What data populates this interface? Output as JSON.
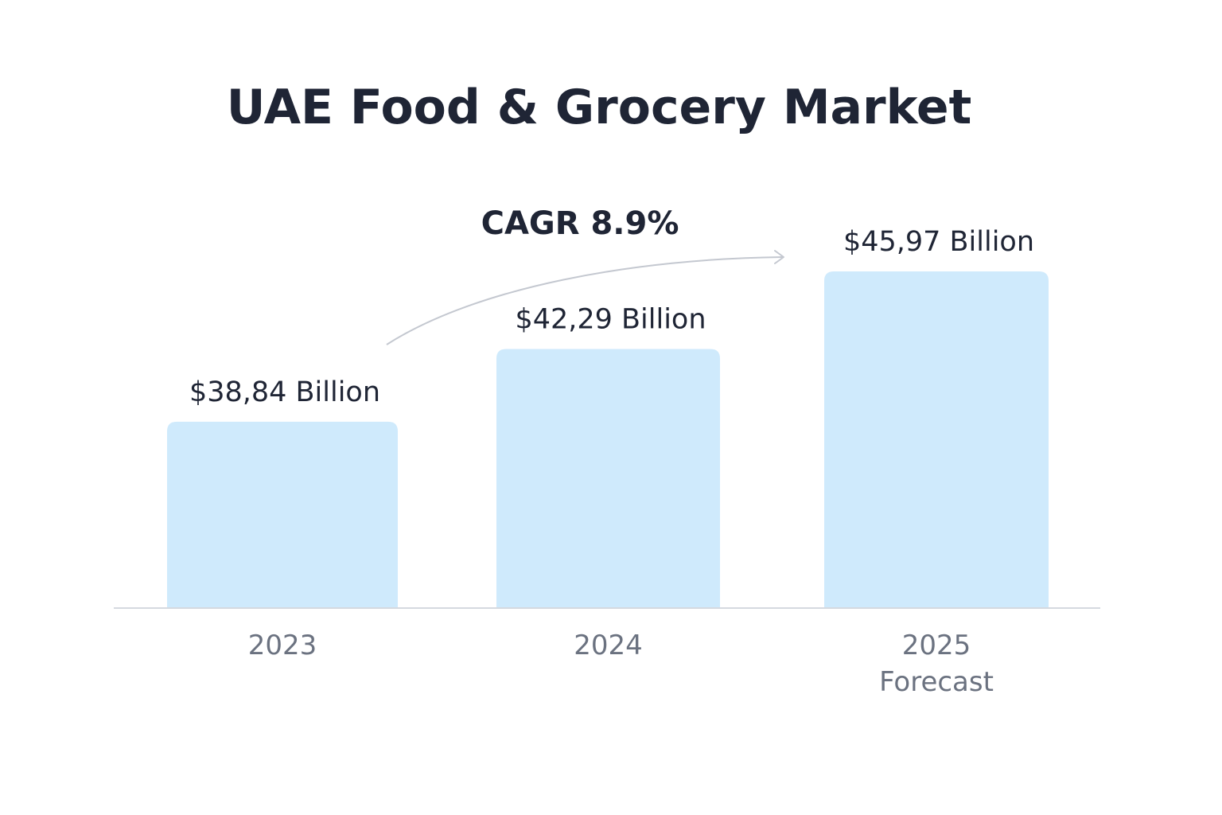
{
  "chart_data": {
    "type": "bar",
    "title": "UAE Food & Grocery Market",
    "categories": [
      "2023",
      "2024",
      "2025"
    ],
    "category_sublabels": [
      "",
      "",
      "Forecast"
    ],
    "values": [
      38.84,
      42.29,
      45.97
    ],
    "value_labels": [
      "$38,84 Billion",
      "$42,29 Billion",
      "$45,97 Billion"
    ],
    "unit": "Billion USD",
    "annotation": "CAGR 8.9%",
    "xlabel": "",
    "ylabel": "",
    "ylim": [
      30,
      48
    ],
    "grid": false
  },
  "colors": {
    "bar": "#cfeafc",
    "axis": "#d5d9e0",
    "arrow": "#c4c8d0",
    "title": "#1f2535",
    "tick": "#6b7280"
  }
}
